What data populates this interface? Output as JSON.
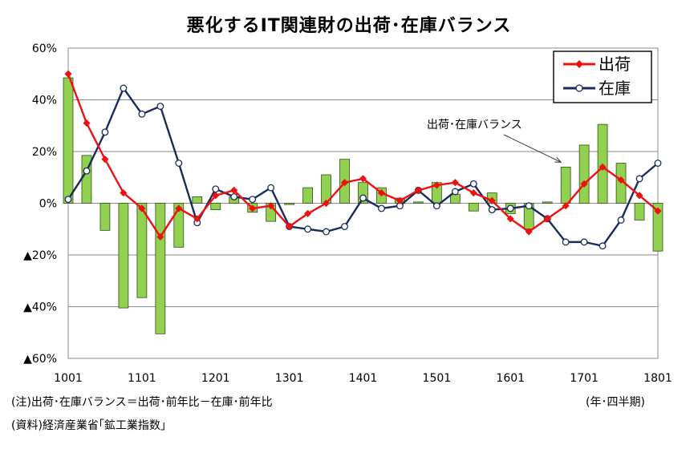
{
  "chart_data": {
    "type": "bar+line",
    "title": "悪化するIT関連財の出荷･在庫バランス",
    "ylim": [
      -60,
      60
    ],
    "yticks": [
      {
        "value": 60,
        "label": "60%"
      },
      {
        "value": 40,
        "label": "40%"
      },
      {
        "value": 20,
        "label": "20%"
      },
      {
        "value": 0,
        "label": "0%"
      },
      {
        "value": -20,
        "label": "▲20%"
      },
      {
        "value": -40,
        "label": "▲40%"
      },
      {
        "value": -60,
        "label": "▲60%"
      }
    ],
    "xtick_labels": [
      "1001",
      "1101",
      "1201",
      "1301",
      "1401",
      "1501",
      "1601",
      "1701",
      "1801"
    ],
    "grid": "horizontal",
    "legend_position": "top-right",
    "series": [
      {
        "name": "出荷",
        "kind": "line",
        "color": "#ee1111",
        "marker": "diamond",
        "values": [
          50,
          31,
          17,
          4,
          -2,
          -13,
          -2,
          -6,
          3,
          5,
          -2,
          -1,
          -9,
          -4,
          0,
          8,
          9.5,
          4,
          1,
          5,
          7,
          8,
          4,
          1,
          -6,
          -11,
          -6,
          -1,
          7.5,
          14,
          9,
          3,
          -3
        ]
      },
      {
        "name": "在庫",
        "kind": "line",
        "color": "#1a2a5c",
        "marker": "circle",
        "values": [
          1.5,
          12.5,
          27.5,
          44.5,
          34.5,
          37.5,
          15.5,
          -7.5,
          5.5,
          2.5,
          1.5,
          6,
          -9,
          -10,
          -11,
          -9,
          2,
          -2,
          -1,
          5,
          -1,
          4.5,
          7.5,
          -2.5,
          -2,
          -1,
          -6,
          -15,
          -15,
          -16.5,
          -6.5,
          9.5,
          15.5
        ]
      },
      {
        "name": "出荷･在庫バランス",
        "kind": "bar",
        "color": "#92d050",
        "values": [
          48.5,
          18.5,
          -10.5,
          -40.5,
          -36.5,
          -50.5,
          -17,
          2.5,
          -2.5,
          2.5,
          -3.5,
          -7,
          -0.5,
          6,
          11,
          17,
          8,
          6,
          2,
          0.5,
          8,
          3.5,
          -3,
          4,
          -4,
          -10,
          0.5,
          14,
          22.5,
          30.5,
          15.5,
          -6.5,
          -18.5
        ]
      }
    ],
    "annotation": {
      "text": "出荷･在庫バランス"
    },
    "notes": {
      "note1": "(注)出荷･在庫バランス＝出荷･前年比－在庫･前年比",
      "note2": "(資料)経済産業省｢鉱工業指数｣",
      "unit": "(年･四半期)"
    }
  }
}
